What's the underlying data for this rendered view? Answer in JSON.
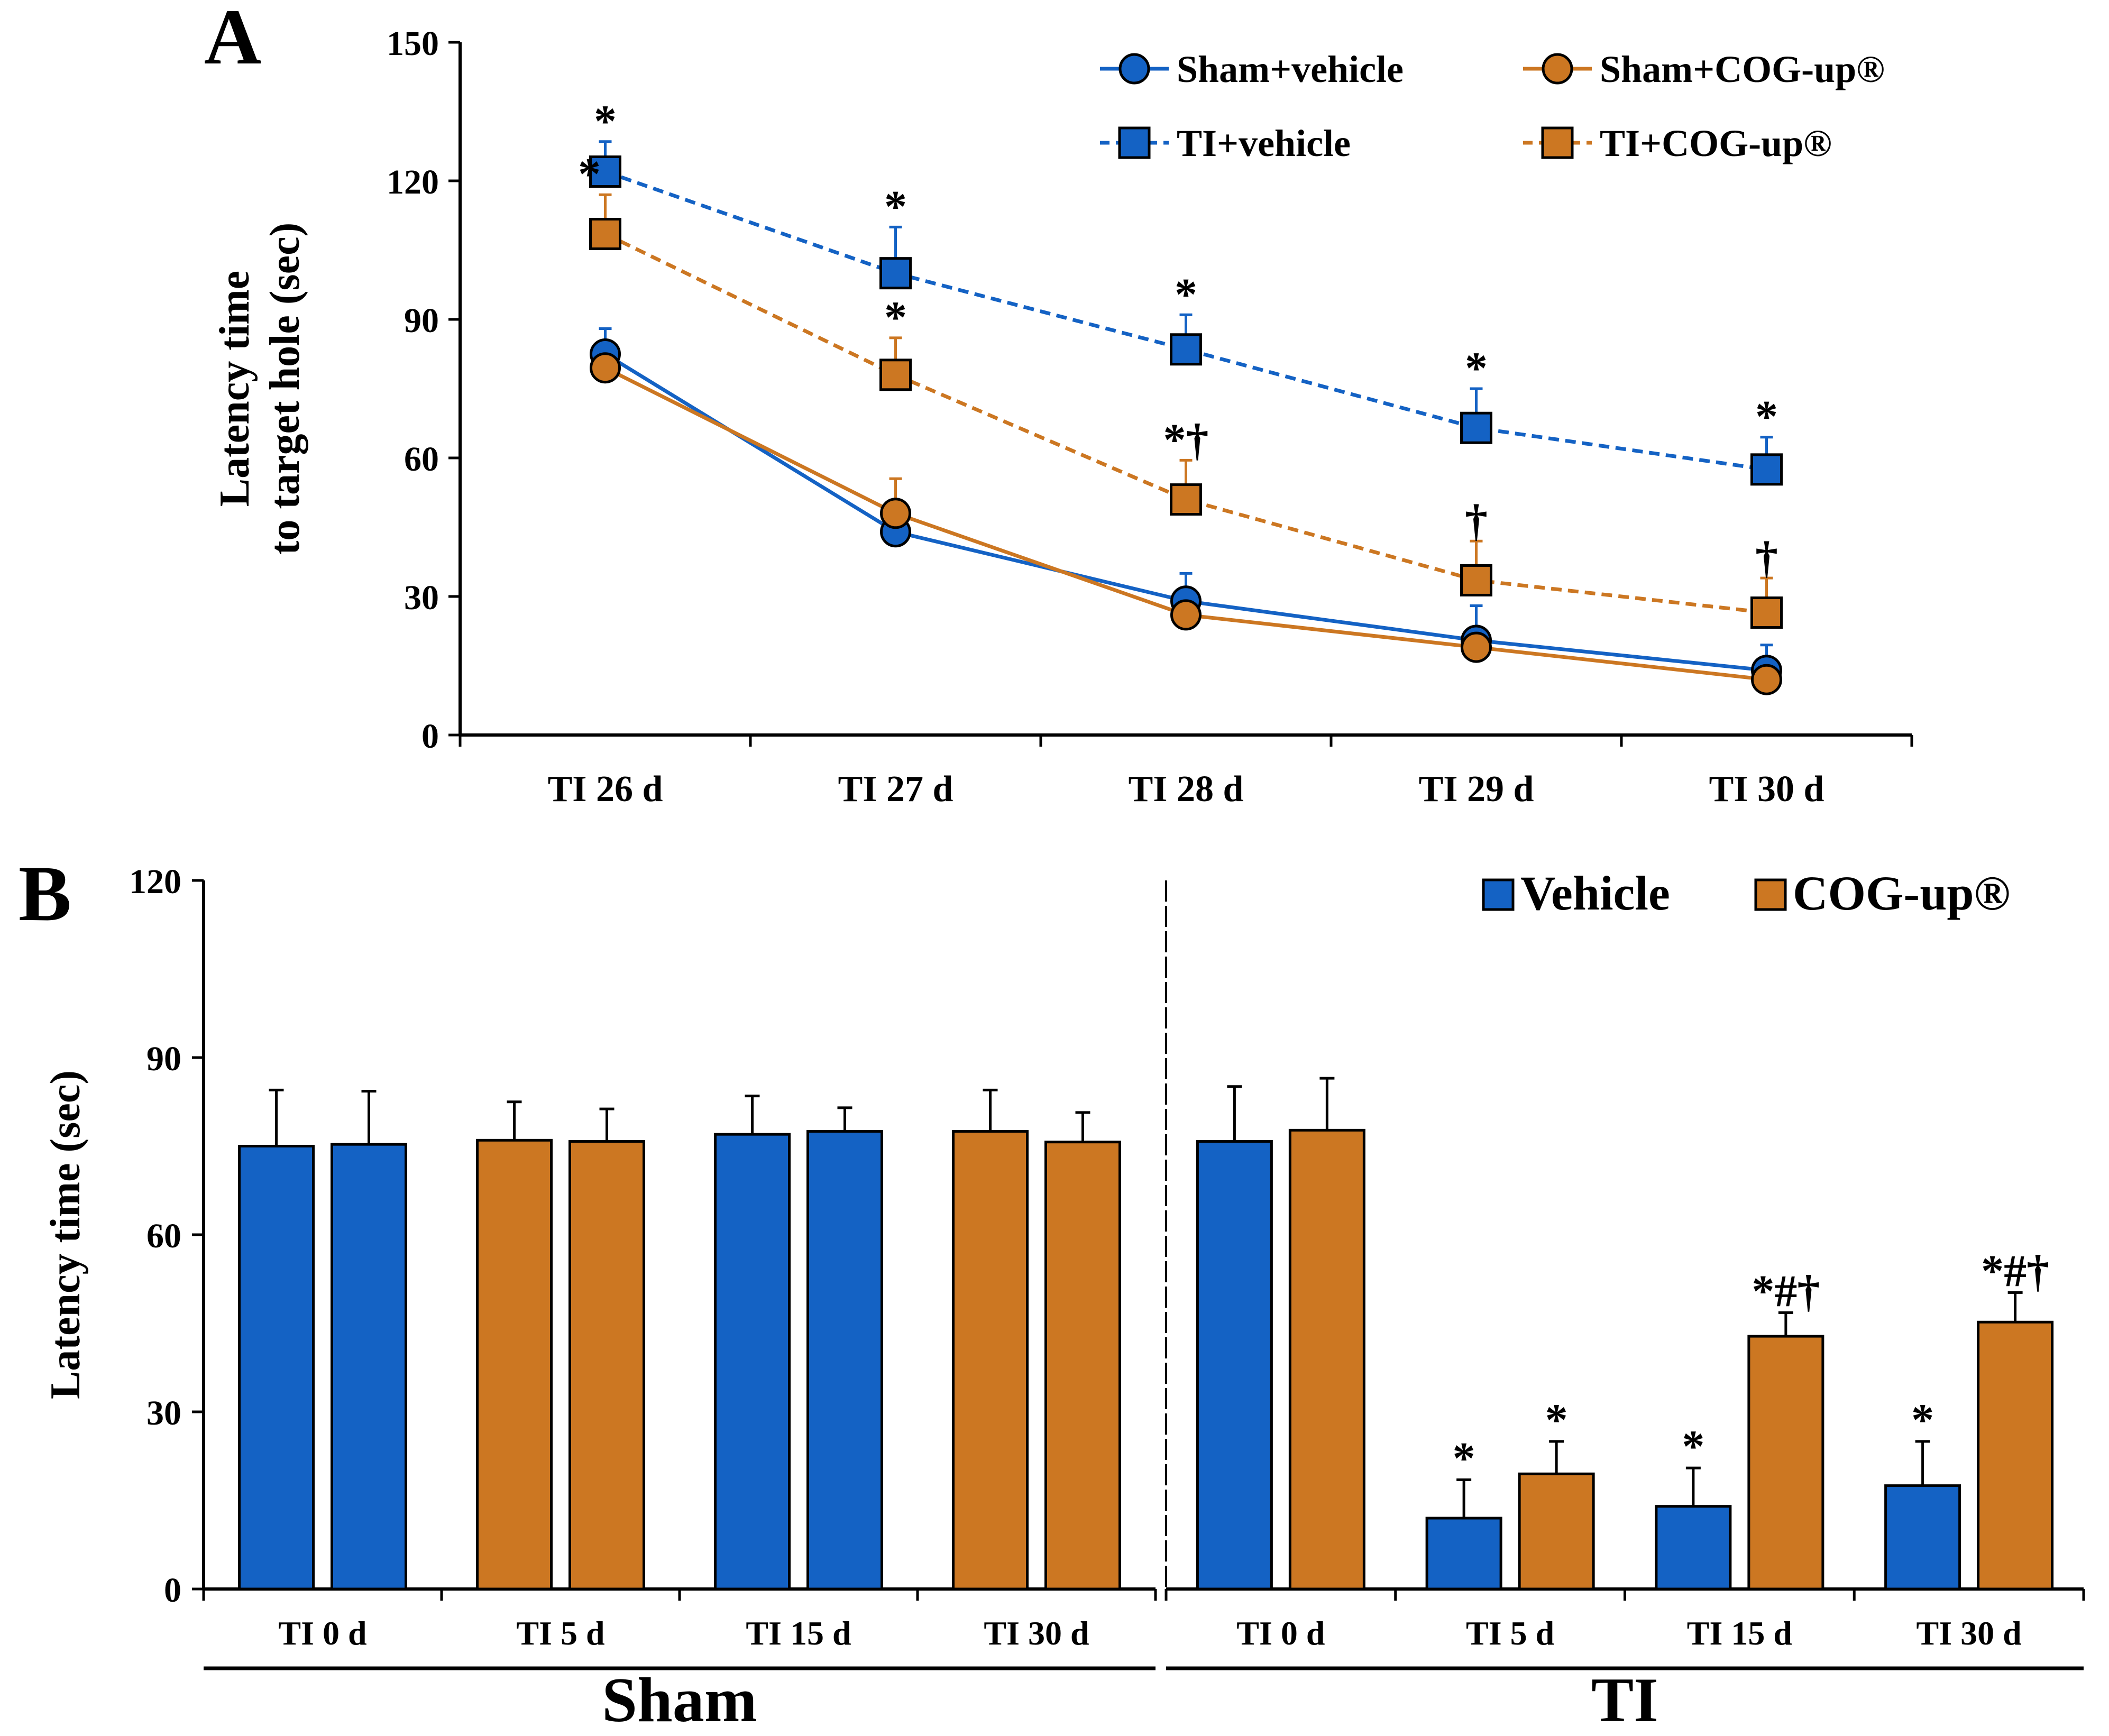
{
  "figure": {
    "panel_a_letter": "A",
    "panel_b_letter": "B"
  },
  "colors": {
    "blue": "#1462c4",
    "orange": "#cc7722",
    "axis": "#000000"
  },
  "chart_data": [
    {
      "panel": "A",
      "type": "line",
      "ylabel_line1": "Latency time",
      "ylabel_line2": "to target hole (sec)",
      "xlabel": "",
      "ylim": [
        0,
        150
      ],
      "yticks": [
        0,
        30,
        60,
        90,
        120,
        150
      ],
      "categories": [
        "TI 26 d",
        "TI 27 d",
        "TI 28 d",
        "TI 29 d",
        "TI 30 d"
      ],
      "series": [
        {
          "name": "Sham+vehicle",
          "marker": "circle",
          "line": "solid",
          "color": "blue",
          "values": [
            82.5,
            44,
            29,
            20.5,
            14
          ],
          "errors": [
            5.5,
            0,
            6,
            7.5,
            5.5
          ],
          "annotations": [
            "",
            "",
            "",
            "",
            ""
          ]
        },
        {
          "name": "Sham+COG-up®",
          "marker": "circle",
          "line": "solid",
          "color": "orange",
          "values": [
            79.5,
            48,
            26,
            19,
            12
          ],
          "errors": [
            0,
            7.5,
            0,
            0,
            0
          ],
          "annotations": [
            "",
            "",
            "",
            "",
            ""
          ]
        },
        {
          "name": "TI+vehicle",
          "marker": "square",
          "line": "dashed",
          "color": "blue",
          "values": [
            122,
            100,
            83.5,
            66.5,
            57.5
          ],
          "errors": [
            6.5,
            10,
            7.5,
            8.5,
            7
          ],
          "annotations": [
            "*",
            "*",
            "*",
            "*",
            "*"
          ]
        },
        {
          "name": "TI+COG-up®",
          "marker": "square",
          "line": "dashed",
          "color": "orange",
          "values": [
            108.5,
            78,
            51,
            33.5,
            26.5
          ],
          "errors": [
            8.5,
            8,
            8.5,
            8.5,
            7.5
          ],
          "annotations": [
            "*",
            "*",
            "*†",
            "†",
            "†"
          ]
        }
      ]
    },
    {
      "panel": "B",
      "type": "bar",
      "ylabel": "Latency time (sec)",
      "xlabel": "",
      "ylim": [
        0,
        120
      ],
      "yticks": [
        0,
        30,
        60,
        90,
        120
      ],
      "legend": [
        "Vehicle",
        "COG-up®"
      ],
      "groups": [
        {
          "name": "Sham",
          "categories": [
            "TI 0 d",
            "TI 5 d",
            "TI 15 d",
            "TI 30 d"
          ],
          "pair_colors": [
            "blue",
            "orange",
            "blue",
            "orange"
          ],
          "vehicle": [
            75,
            76,
            77,
            77.5
          ],
          "vehicle_err": [
            9.5,
            6.5,
            6.5,
            7
          ],
          "cog": [
            75.3,
            75.8,
            77.5,
            75.7
          ],
          "cog_err": [
            9,
            5.5,
            4,
            5
          ],
          "vehicle_ann": [
            "",
            "",
            "",
            ""
          ],
          "cog_ann": [
            "",
            "",
            "",
            ""
          ]
        },
        {
          "name": "TI",
          "categories": [
            "TI 0 d",
            "TI 5 d",
            "TI 15 d",
            "TI 30 d"
          ],
          "pair_colors": null,
          "vehicle": [
            75.8,
            12,
            14,
            17.5
          ],
          "vehicle_err": [
            9.3,
            6.5,
            6.5,
            7.5
          ],
          "cog": [
            77.7,
            19.5,
            42.8,
            45.2
          ],
          "cog_err": [
            8.8,
            5.5,
            4,
            5
          ],
          "vehicle_ann": [
            "",
            "*",
            "*",
            "*"
          ],
          "cog_ann": [
            "",
            "*",
            "*#†",
            "*#†"
          ]
        }
      ]
    }
  ]
}
